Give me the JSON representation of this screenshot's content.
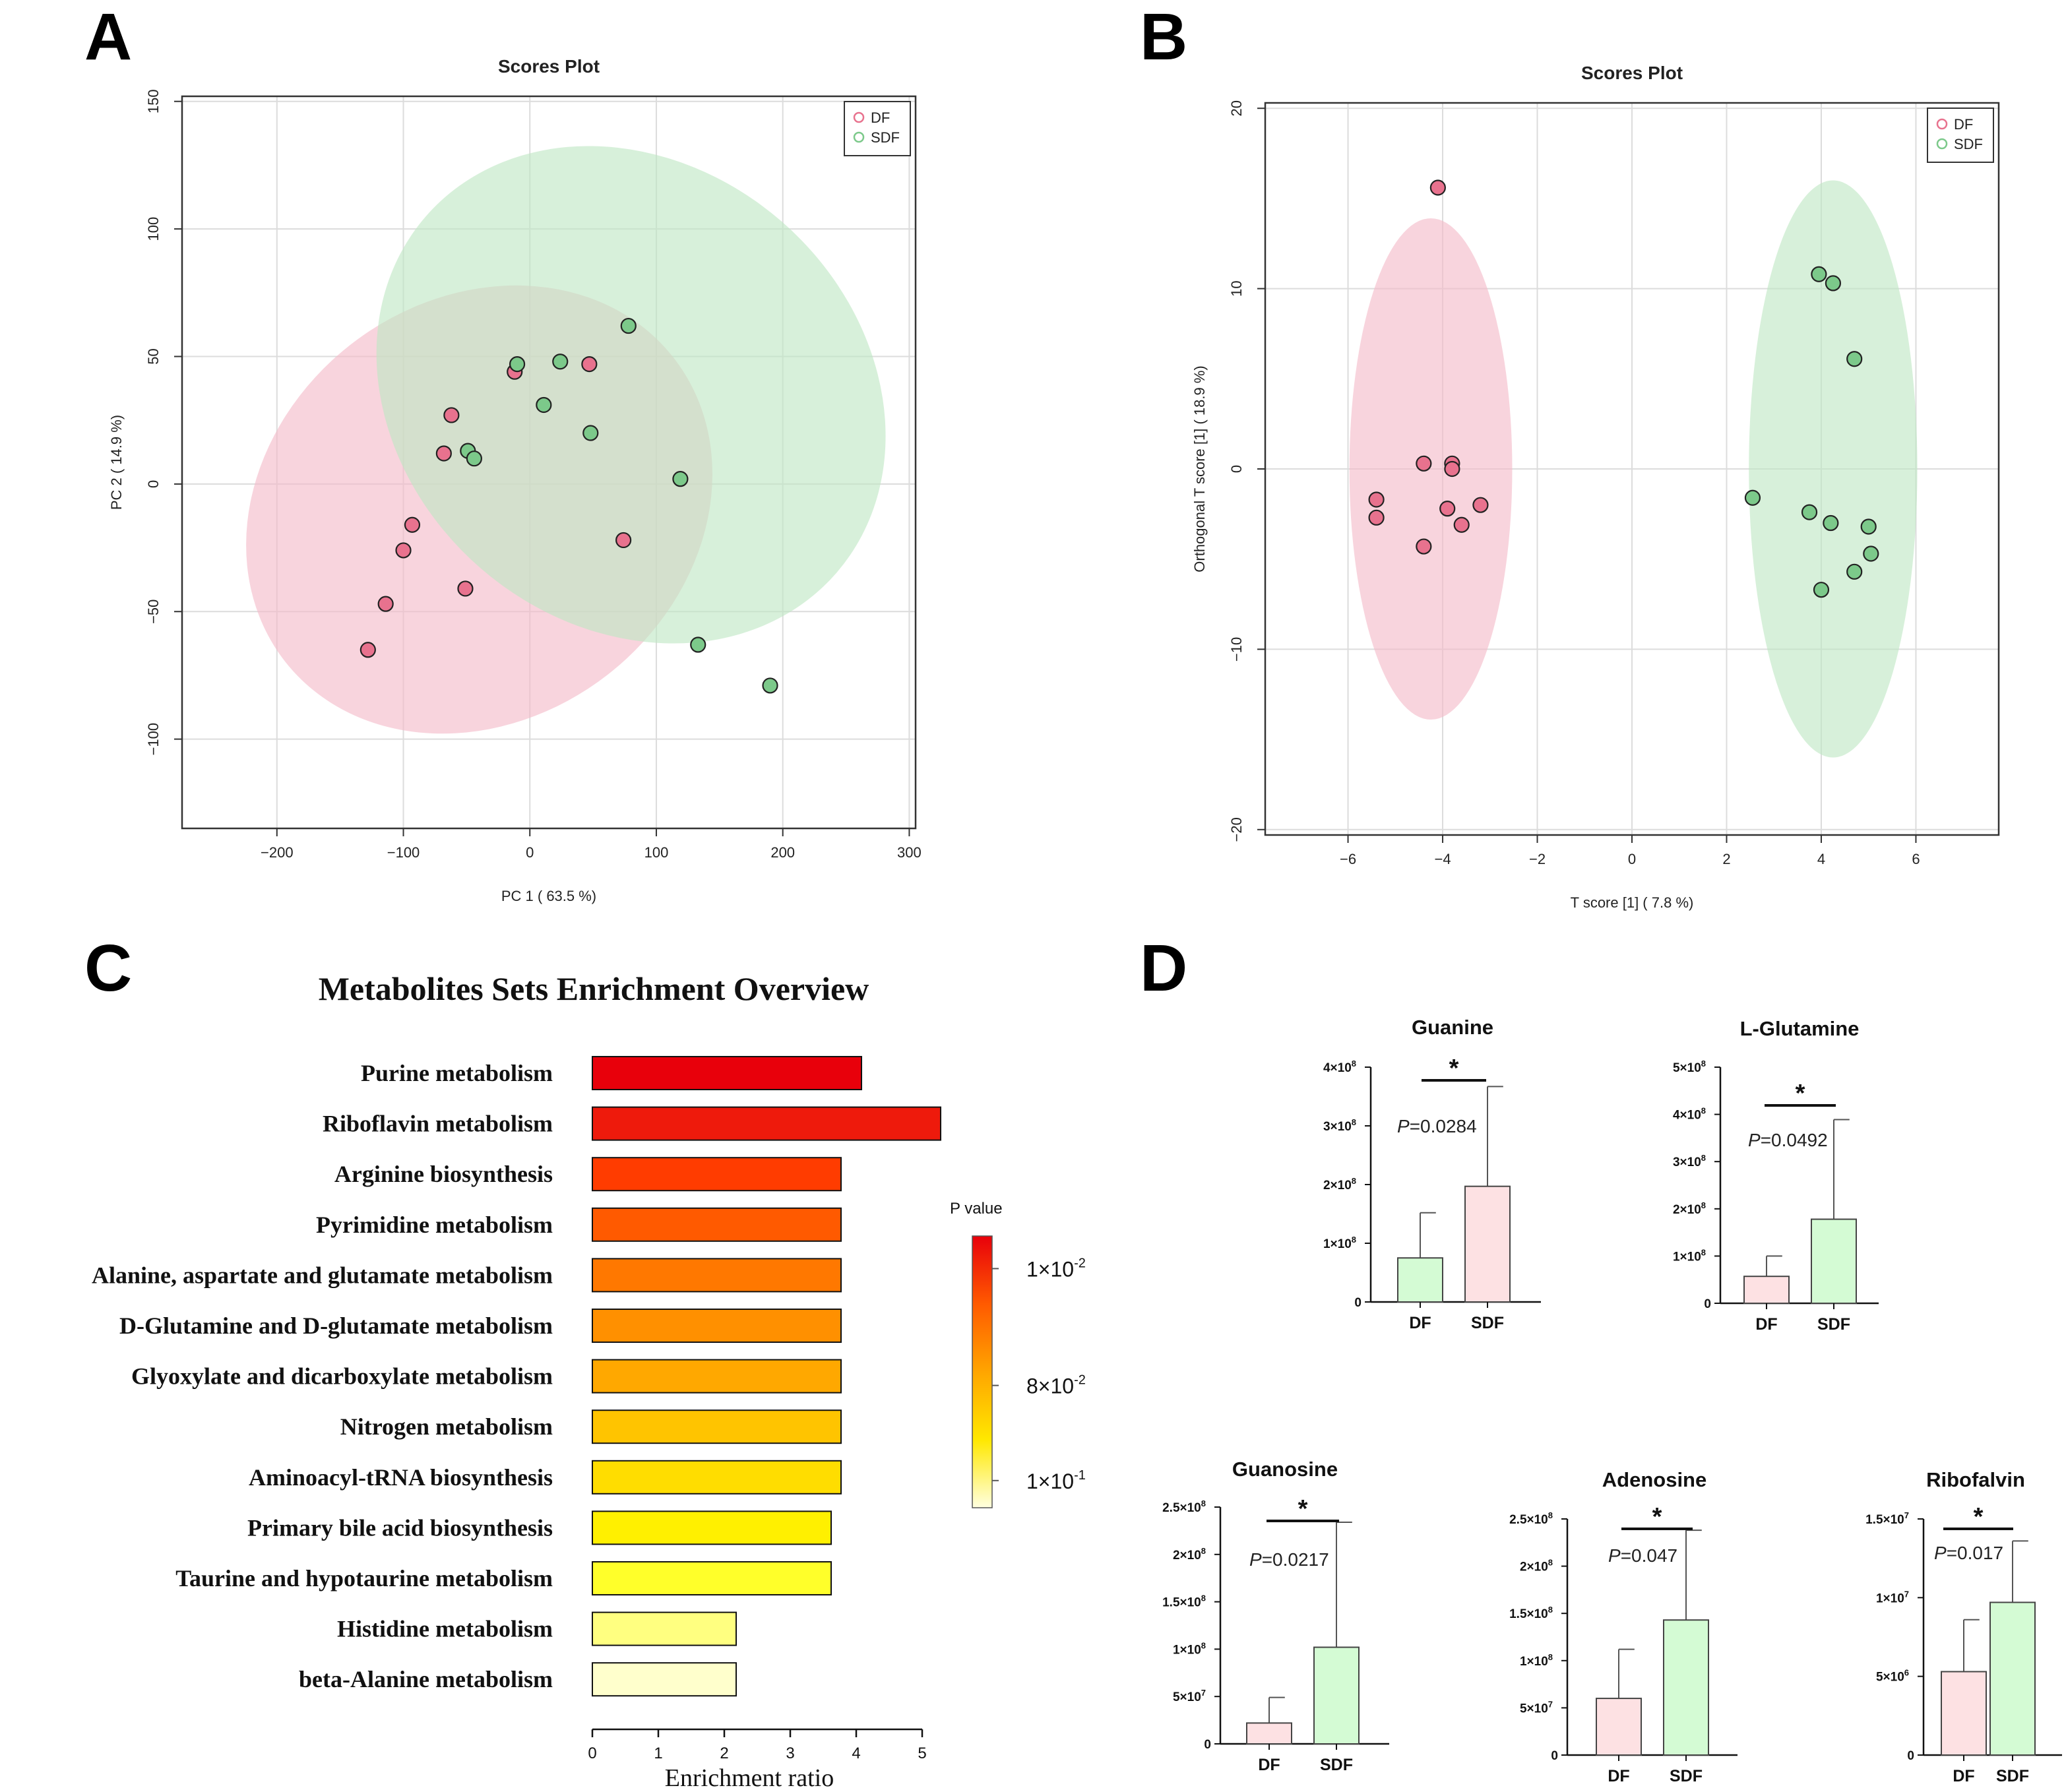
{
  "panel_letters": {
    "a": "A",
    "b": "B",
    "c": "C",
    "d": "D"
  },
  "colors": {
    "df": "#e8728e",
    "sdf": "#7cc98a",
    "df_ellipse": "#f4b9c8",
    "sdf_ellipse": "#bfe6c4",
    "df_bar": "#fde1e3",
    "sdf_bar": "#d4fbd4"
  },
  "chart_data": [
    {
      "id": "A",
      "type": "scatter",
      "title": "Scores Plot",
      "xlabel": "PC 1 ( 63.5 %)",
      "ylabel": "PC 2 ( 14.9 %)",
      "xlim": [
        -275,
        305
      ],
      "ylim": [
        -135,
        152
      ],
      "xticks": [
        -200,
        -100,
        0,
        100,
        200,
        300
      ],
      "yticks": [
        -100,
        -50,
        0,
        50,
        100,
        150
      ],
      "xtick_labels": [
        "−200",
        "−100",
        "0",
        "100",
        "200",
        "300"
      ],
      "ytick_labels": [
        "−100",
        "−50",
        "0",
        "50",
        "100",
        "150"
      ],
      "legend": [
        "DF",
        "SDF"
      ],
      "legend_position": "top-right",
      "ellipses": [
        {
          "group": "DF",
          "cx": -40,
          "cy": -10,
          "rx": 195,
          "ry": 82,
          "angle_deg": 38
        },
        {
          "group": "SDF",
          "cx": 80,
          "cy": 35,
          "rx": 215,
          "ry": 90,
          "angle_deg": -41
        }
      ],
      "series": [
        {
          "name": "DF",
          "points": [
            [
              -128,
              -65
            ],
            [
              -114,
              -47
            ],
            [
              -100,
              -26
            ],
            [
              -93,
              -16
            ],
            [
              -68,
              12
            ],
            [
              -62,
              27
            ],
            [
              -51,
              -41
            ],
            [
              -12,
              44
            ],
            [
              47,
              47
            ],
            [
              74,
              -22
            ]
          ]
        },
        {
          "name": "SDF",
          "points": [
            [
              -49,
              13
            ],
            [
              -44,
              10
            ],
            [
              -10,
              47
            ],
            [
              11,
              31
            ],
            [
              24,
              48
            ],
            [
              48,
              20
            ],
            [
              78,
              62
            ],
            [
              119,
              2
            ],
            [
              133,
              -63
            ],
            [
              190,
              -79
            ]
          ]
        }
      ]
    },
    {
      "id": "B",
      "type": "scatter",
      "title": "Scores Plot",
      "xlabel": "T score [1] ( 7.8 %)",
      "ylabel": "Orthogonal T score [1] ( 18.9 %)",
      "xlim": [
        -7.75,
        7.75
      ],
      "ylim": [
        -20.3,
        20.3
      ],
      "xticks": [
        -6,
        -4,
        -2,
        0,
        2,
        4,
        6
      ],
      "yticks": [
        -20,
        -10,
        0,
        10,
        20
      ],
      "xtick_labels": [
        "−6",
        "−4",
        "−2",
        "0",
        "2",
        "4",
        "6"
      ],
      "ytick_labels": [
        "−20",
        "−10",
        "0",
        "10",
        "20"
      ],
      "legend": [
        "DF",
        "SDF"
      ],
      "legend_position": "top-right",
      "ellipses": [
        {
          "group": "DF",
          "cx": -4.25,
          "cy": 0,
          "rx": 1.72,
          "ry": 13.9,
          "angle_deg": 0
        },
        {
          "group": "SDF",
          "cx": 4.25,
          "cy": 0,
          "rx": 1.78,
          "ry": 16.0,
          "angle_deg": 0
        }
      ],
      "series": [
        {
          "name": "DF",
          "points": [
            [
              -4.1,
              15.6
            ],
            [
              -5.4,
              -1.7
            ],
            [
              -5.4,
              -2.7
            ],
            [
              -4.4,
              0.3
            ],
            [
              -4.4,
              -4.3
            ],
            [
              -3.8,
              0.3
            ],
            [
              -3.8,
              0.0
            ],
            [
              -3.9,
              -2.2
            ],
            [
              -3.6,
              -3.1
            ],
            [
              -3.2,
              -2.0
            ]
          ]
        },
        {
          "name": "SDF",
          "points": [
            [
              2.55,
              -1.6
            ],
            [
              3.75,
              -2.4
            ],
            [
              3.95,
              10.8
            ],
            [
              4.0,
              -6.7
            ],
            [
              4.2,
              -3.0
            ],
            [
              4.25,
              10.3
            ],
            [
              4.7,
              6.1
            ],
            [
              4.7,
              -5.7
            ],
            [
              5.0,
              -3.2
            ],
            [
              5.05,
              -4.7
            ]
          ]
        }
      ]
    },
    {
      "id": "C",
      "type": "bar",
      "orientation": "horizontal",
      "title": "Metabolites Sets Enrichment Overview",
      "xlabel": "Enrichment ratio",
      "xlim": [
        0,
        5.15
      ],
      "xticks": [
        0,
        1,
        2,
        3,
        4,
        5
      ],
      "categories": [
        "Purine metabolism",
        "Riboflavin metabolism",
        "Arginine biosynthesis",
        "Pyrimidine metabolism",
        "Alanine, aspartate and glutamate metabolism",
        "D-Glutamine and D-glutamate metabolism",
        "Glyoxylate and dicarboxylate metabolism",
        "Nitrogen metabolism",
        "Aminoacyl-tRNA biosynthesis",
        "Primary bile acid biosynthesis",
        "Taurine and hypotaurine metabolism",
        "Histidine metabolism",
        "beta-Alanine metabolism"
      ],
      "values": [
        4.08,
        5.28,
        3.77,
        3.77,
        3.77,
        3.77,
        3.77,
        3.77,
        3.77,
        3.62,
        3.62,
        2.18,
        2.18
      ],
      "bar_colors": [
        "#e8000b",
        "#ee1a0c",
        "#ff3c00",
        "#ff5a00",
        "#ff7800",
        "#ff9000",
        "#ffa800",
        "#ffc400",
        "#ffdd00",
        "#fff000",
        "#ffff2a",
        "#ffff80",
        "#ffffcc"
      ],
      "colorbar": {
        "title": "P value",
        "labels": [
          {
            "base": "1×10",
            "exp": "-2"
          },
          {
            "base": "8×10",
            "exp": "-2"
          },
          {
            "base": "1×10",
            "exp": "-1"
          }
        ],
        "label_fractions": [
          0.12,
          0.55,
          0.9
        ],
        "gradient": [
          "#e8000b",
          "#ff5a00",
          "#ffa500",
          "#ffe800",
          "#ffffe0"
        ]
      }
    },
    {
      "id": "D-guanine",
      "type": "bar",
      "title": "Guanine",
      "categories": [
        "DF",
        "SDF"
      ],
      "values": [
        75000000.0,
        197000000.0
      ],
      "errors": [
        77000000.0,
        170000000.0
      ],
      "bar_colors": [
        "#d4fbd4",
        "#fde1e3"
      ],
      "ylim": [
        0,
        400000000.0
      ],
      "yticks": [
        0,
        100000000.0,
        200000000.0,
        300000000.0,
        400000000.0
      ],
      "ytick_labels": [
        {
          "m": "0",
          "e": ""
        },
        {
          "m": "1×10",
          "e": "8"
        },
        {
          "m": "2×10",
          "e": "8"
        },
        {
          "m": "3×10",
          "e": "8"
        },
        {
          "m": "4×10",
          "e": "8"
        }
      ],
      "p_label": "P",
      "p_value": "=0.0284",
      "significance": "*"
    },
    {
      "id": "D-lglutamine",
      "type": "bar",
      "title": "L-Glutamine",
      "categories": [
        "DF",
        "SDF"
      ],
      "values": [
        57000000.0,
        178000000.0
      ],
      "errors": [
        43000000.0,
        211000000.0
      ],
      "bar_colors": [
        "#fde1e3",
        "#d4fbd4"
      ],
      "ylim": [
        0,
        500000000.0
      ],
      "yticks": [
        0,
        100000000.0,
        200000000.0,
        300000000.0,
        400000000.0,
        500000000.0
      ],
      "ytick_labels": [
        {
          "m": "0",
          "e": ""
        },
        {
          "m": "1×10",
          "e": "8"
        },
        {
          "m": "2×10",
          "e": "8"
        },
        {
          "m": "3×10",
          "e": "8"
        },
        {
          "m": "4×10",
          "e": "8"
        },
        {
          "m": "5×10",
          "e": "8"
        }
      ],
      "p_label": "P",
      "p_value": "=0.0492",
      "significance": "*"
    },
    {
      "id": "D-guanosine",
      "type": "bar",
      "title": "Guanosine",
      "categories": [
        "DF",
        "SDF"
      ],
      "values": [
        22000000.0,
        102000000.0
      ],
      "errors": [
        27000000.0,
        132000000.0
      ],
      "bar_colors": [
        "#fde1e3",
        "#d4fbd4"
      ],
      "ylim": [
        0,
        250000000.0
      ],
      "yticks": [
        0,
        50000000.0,
        100000000.0,
        150000000.0,
        200000000.0,
        250000000.0
      ],
      "ytick_labels": [
        {
          "m": "0",
          "e": ""
        },
        {
          "m": "5×10",
          "e": "7"
        },
        {
          "m": "1×10",
          "e": "8"
        },
        {
          "m": "1.5×10",
          "e": "8"
        },
        {
          "m": "2×10",
          "e": "8"
        },
        {
          "m": "2.5×10",
          "e": "8"
        }
      ],
      "p_label": "P",
      "p_value": "=0.0217",
      "significance": "*"
    },
    {
      "id": "D-adenosine",
      "type": "bar",
      "title": "Adenosine",
      "categories": [
        "DF",
        "SDF"
      ],
      "values": [
        60000000.0,
        143000000.0
      ],
      "errors": [
        52000000.0,
        95000000.0
      ],
      "bar_colors": [
        "#fde1e3",
        "#d4fbd4"
      ],
      "ylim": [
        0,
        250000000.0
      ],
      "yticks": [
        0,
        50000000.0,
        100000000.0,
        150000000.0,
        200000000.0,
        250000000.0
      ],
      "ytick_labels": [
        {
          "m": "0",
          "e": ""
        },
        {
          "m": "5×10",
          "e": "7"
        },
        {
          "m": "1×10",
          "e": "8"
        },
        {
          "m": "1.5×10",
          "e": "8"
        },
        {
          "m": "2×10",
          "e": "8"
        },
        {
          "m": "2.5×10",
          "e": "8"
        }
      ],
      "p_label": "P",
      "p_value": "=0.047",
      "significance": "*"
    },
    {
      "id": "D-riboflavin",
      "type": "bar",
      "title": "Ribofalvin",
      "categories": [
        "DF",
        "SDF"
      ],
      "values": [
        5300000.0,
        9700000.0
      ],
      "errors": [
        3300000.0,
        3900000.0
      ],
      "bar_colors": [
        "#fde1e3",
        "#d4fbd4"
      ],
      "ylim": [
        0,
        15000000.0
      ],
      "yticks": [
        0,
        5000000.0,
        10000000.0,
        15000000.0
      ],
      "ytick_labels": [
        {
          "m": "0",
          "e": ""
        },
        {
          "m": "5×10",
          "e": "6"
        },
        {
          "m": "1×10",
          "e": "7"
        },
        {
          "m": "1.5×10",
          "e": "7"
        }
      ],
      "p_label": "P",
      "p_value": "=0.017",
      "significance": "*"
    }
  ]
}
